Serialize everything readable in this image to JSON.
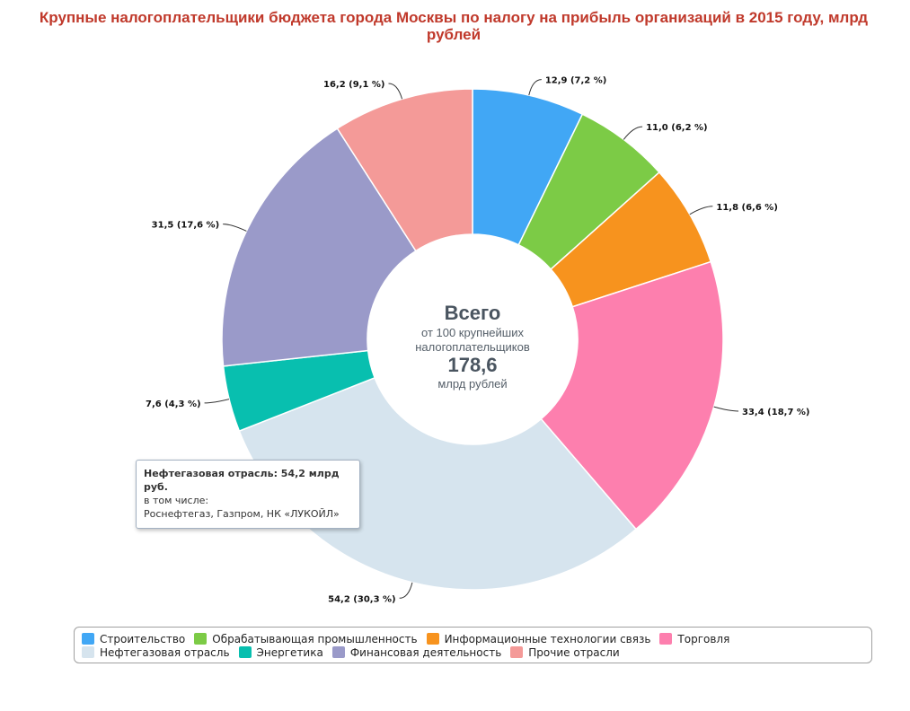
{
  "title_lines": [
    "Крупные налогоплательщики бюджета города Москвы по налогу на прибыль организаций в 2015 году, млрд",
    "рублей"
  ],
  "center": {
    "heading": "Всего",
    "line1": "от 100 крупнейших",
    "line2": "налогоплательщиков",
    "total": "178,6",
    "unit": "млрд рублей"
  },
  "tooltip": {
    "title": "Нефтегазовая отрасль: 54,2 млрд руб.",
    "line1": "в том числе:",
    "line2": "Роснефтегаз, Газпром, НК «ЛУКОЙЛ»"
  },
  "chart_data": {
    "type": "pie",
    "variant": "donut",
    "legend_position": "bottom",
    "series": [
      {
        "name": "Строительство",
        "value": 12.9,
        "label": "12,9 (7,2 %)",
        "color": "#41a7f5"
      },
      {
        "name": "Обрабатывающая промышленность",
        "value": 11.0,
        "label": "11,0 (6,2 %)",
        "color": "#7ccb46"
      },
      {
        "name": "Информационные технологии связь",
        "value": 11.8,
        "label": "11,8 (6,6 %)",
        "color": "#f7931e"
      },
      {
        "name": "Торговля",
        "value": 33.4,
        "label": "33,4 (18,7 %)",
        "color": "#fd7fae"
      },
      {
        "name": "Нефтегазовая отрасль",
        "value": 54.2,
        "label": "54,2 (30,3 %)",
        "color": "#d6e4ee"
      },
      {
        "name": "Энергетика",
        "value": 7.6,
        "label": "7,6 (4,3 %)",
        "color": "#08bfaf"
      },
      {
        "name": "Финансовая деятельность",
        "value": 31.5,
        "label": "31,5 (17,6 %)",
        "color": "#9a9ac9"
      },
      {
        "name": "Прочие отрасли",
        "value": 16.2,
        "label": "16,2 (9,1 %)",
        "color": "#f49a98"
      }
    ]
  }
}
